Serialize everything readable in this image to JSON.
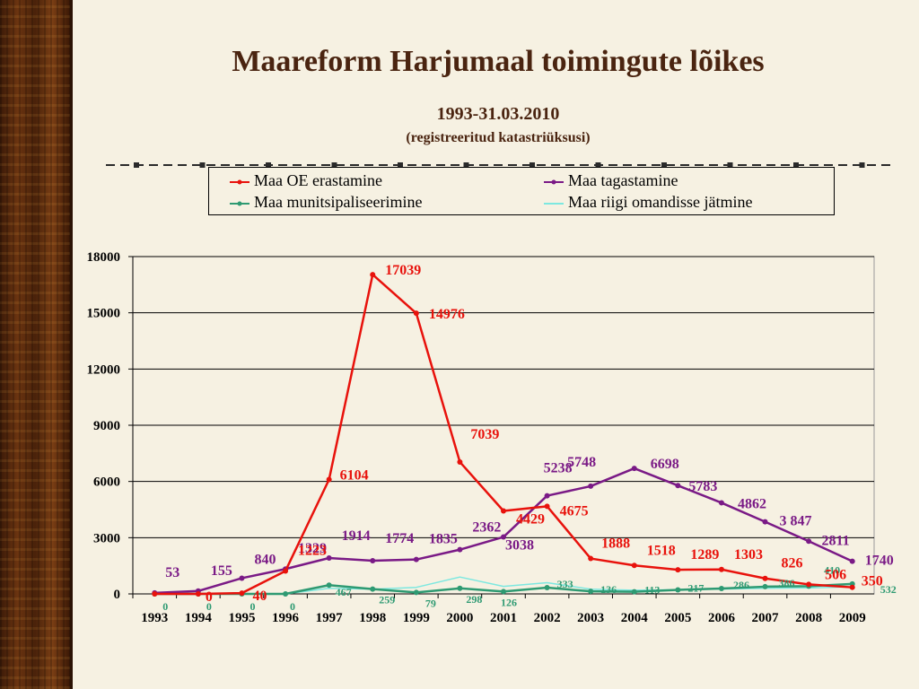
{
  "chart_data": {
    "type": "line",
    "title": "Maareform Harjumaal toimingute lõikes",
    "subtitle": "1993-31.03.2010",
    "subtitle2": "(registreeritud katastriüksusi)",
    "xlabel": "",
    "ylabel": "",
    "categories": [
      "1993",
      "1994",
      "1995",
      "1996",
      "1997",
      "1998",
      "1999",
      "2000",
      "2001",
      "2002",
      "2003",
      "2004",
      "2005",
      "2006",
      "2007",
      "2008",
      "2009"
    ],
    "ylim": [
      0,
      18000
    ],
    "yticks": [
      "0",
      "3000",
      "6000",
      "9000",
      "12000",
      "15000",
      "18000"
    ],
    "grid": true,
    "legend_position": "top",
    "series": [
      {
        "name": "Maa OE erastamine",
        "color": "#e8120c",
        "values": [
          0,
          0,
          40,
          1223,
          6104,
          17039,
          14976,
          7039,
          4429,
          4675,
          1888,
          1518,
          1289,
          1303,
          826,
          506,
          350
        ],
        "labels": [
          "",
          "0",
          "40",
          "1223",
          "6104",
          "17039",
          "14976",
          "7039",
          "4429",
          "4675",
          "1888",
          "1518",
          "1289",
          "1303",
          "826",
          "506",
          "350"
        ]
      },
      {
        "name": "Maa tagastamine",
        "color": "#7a1a86",
        "values": [
          53,
          155,
          840,
          1329,
          1914,
          1774,
          1835,
          2362,
          3038,
          5238,
          5748,
          6698,
          5783,
          4862,
          3847,
          2811,
          1740
        ],
        "labels": [
          "53",
          "155",
          "840",
          "1329",
          "1914",
          "1774",
          "1835",
          "2362",
          "3038",
          "5238",
          "5748",
          "6698",
          "5783",
          "4862",
          "3 847",
          "2811",
          "1740"
        ]
      },
      {
        "name": "Maa munitsipaliseerimine",
        "color": "#2e9a72",
        "values": [
          0,
          0,
          0,
          0,
          467,
          259,
          79,
          298,
          126,
          333,
          136,
          113,
          217,
          286,
          386,
          410,
          532
        ],
        "labels": [
          "0",
          "0",
          "0",
          "0",
          "467",
          "259",
          "79",
          "298",
          "126",
          "333",
          "136",
          "113",
          "217",
          "286",
          "386",
          "410",
          "532"
        ]
      },
      {
        "name": "Maa riigi omandisse jätmine",
        "color": "#7de8e0",
        "values": [
          0,
          0,
          0,
          0,
          300,
          250,
          350,
          900,
          400,
          600,
          250,
          200,
          220,
          260,
          300,
          320,
          380
        ],
        "labels": []
      }
    ]
  }
}
